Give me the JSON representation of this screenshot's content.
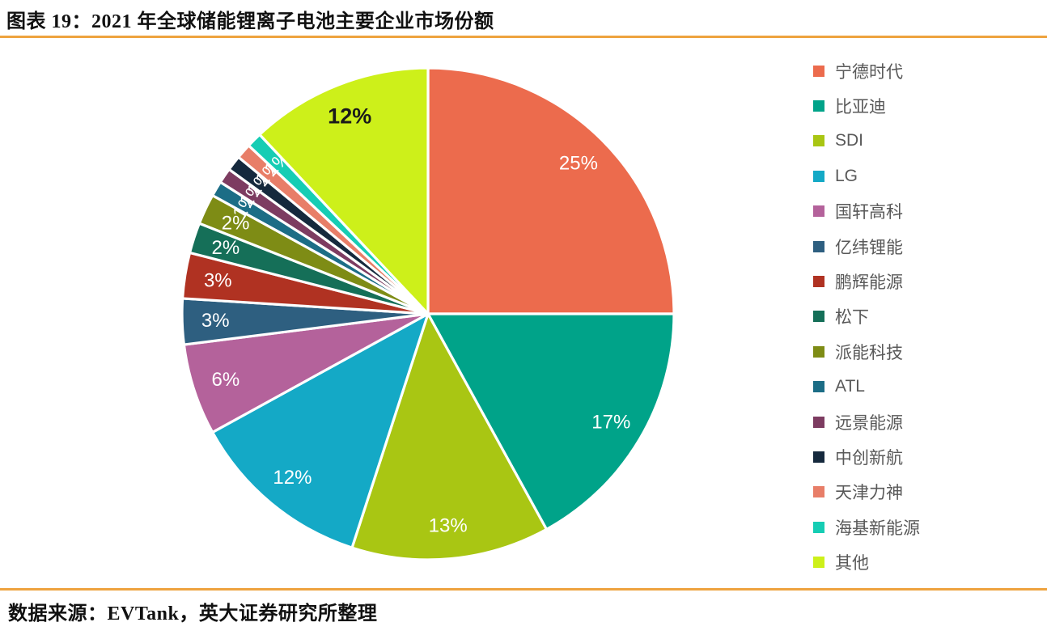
{
  "header": {
    "title": "图表 19：2021 年全球储能锂离子电池主要企业市场份额"
  },
  "footer": {
    "source": "数据来源：EVTank，英大证券研究所整理"
  },
  "accent_colors": {
    "divider_gold": "#EEA33F",
    "legend_text": "#595959"
  },
  "chart_data": {
    "type": "pie",
    "title": "2021 年全球储能锂离子电池主要企业市场份额",
    "unit": "%",
    "start_angle_deg": 0,
    "direction": "clockwise",
    "legend_position": "right",
    "slices": [
      {
        "name": "宁德时代",
        "value": 25,
        "label": "25%",
        "color": "#EC6B4D",
        "label_color": "#FFFFFF"
      },
      {
        "name": "比亚迪",
        "value": 17,
        "label": "17%",
        "color": "#00A389",
        "label_color": "#FFFFFF"
      },
      {
        "name": "SDI",
        "value": 13,
        "label": "13%",
        "color": "#A9C613",
        "label_color": "#FFFFFF"
      },
      {
        "name": "LG",
        "value": 12,
        "label": "12%",
        "color": "#14A9C6",
        "label_color": "#FFFFFF"
      },
      {
        "name": "国轩高科",
        "value": 6,
        "label": "6%",
        "color": "#B4629B",
        "label_color": "#FFFFFF"
      },
      {
        "name": "亿纬锂能",
        "value": 3,
        "label": "3%",
        "color": "#2E5F80",
        "label_color": "#FFFFFF"
      },
      {
        "name": "鹏辉能源",
        "value": 3,
        "label": "3%",
        "color": "#B03222",
        "label_color": "#FFFFFF"
      },
      {
        "name": "松下",
        "value": 2,
        "label": "2%",
        "color": "#156F58",
        "label_color": "#FFFFFF"
      },
      {
        "name": "派能科技",
        "value": 2,
        "label": "2%",
        "color": "#7E8C15",
        "label_color": "#FFFFFF"
      },
      {
        "name": "ATL",
        "value": 1,
        "label": "1%",
        "color": "#1C6D86",
        "label_color": "#FFFFFF",
        "rotate_label": true
      },
      {
        "name": "远景能源",
        "value": 1,
        "label": "1%",
        "color": "#7D3C61",
        "label_color": "#FFFFFF",
        "rotate_label": true
      },
      {
        "name": "中创新航",
        "value": 1,
        "label": "1%",
        "color": "#15293D",
        "label_color": "#FFFFFF",
        "rotate_label": true
      },
      {
        "name": "天津力神",
        "value": 1,
        "label": "1%",
        "color": "#E87E68",
        "label_color": "#FFFFFF",
        "rotate_label": true
      },
      {
        "name": "海基新能源",
        "value": 1,
        "label": "1%",
        "color": "#16CDB4",
        "label_color": "#FFFFFF",
        "rotate_label": true
      },
      {
        "name": "其他",
        "value": 12,
        "label": "12%",
        "color": "#CDF01A",
        "label_color": "#1A1A1A",
        "label_bold": true
      }
    ]
  }
}
